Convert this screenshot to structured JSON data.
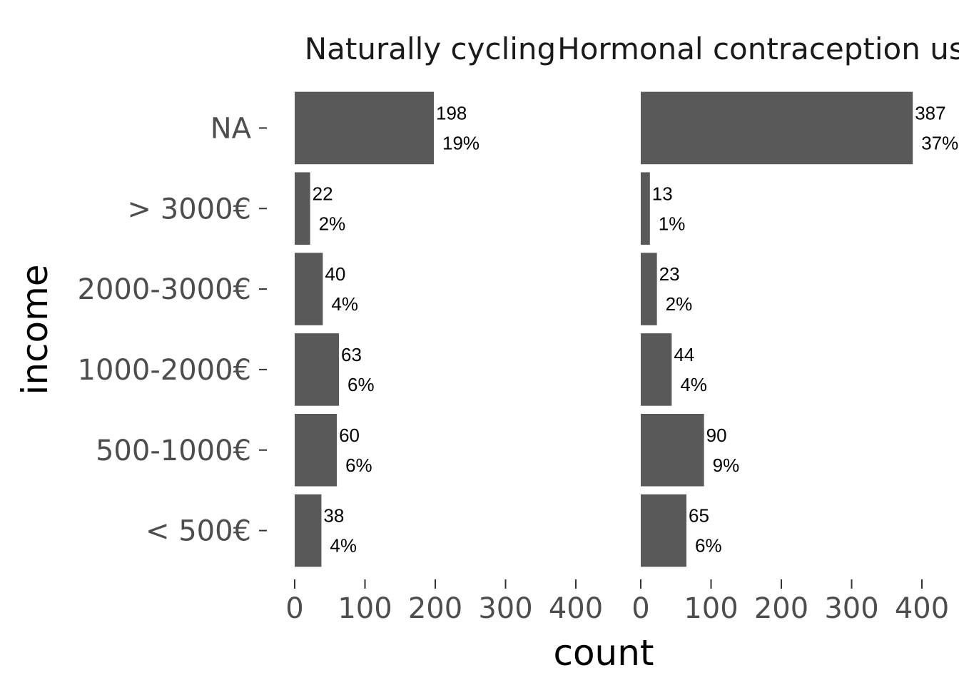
{
  "chart_data": {
    "type": "bar",
    "orientation": "horizontal",
    "xlabel": "count",
    "ylabel": "income",
    "xlim": [
      0,
      400
    ],
    "xticks": [
      "0",
      "100",
      "200",
      "300",
      "400"
    ],
    "categories": [
      "NA",
      "> 3000€",
      "2000-3000€",
      "1000-2000€",
      "500-1000€",
      "< 500€"
    ],
    "bar_color": "#595959",
    "grid": false,
    "panels": [
      {
        "title": "Naturally cycling",
        "values": [
          198,
          22,
          40,
          63,
          60,
          38
        ],
        "counts": [
          "198",
          "22",
          "40",
          "63",
          "60",
          "38"
        ],
        "percents": [
          "19%",
          "2%",
          "4%",
          "6%",
          "6%",
          "4%"
        ]
      },
      {
        "title": "Hormonal contraception user",
        "values": [
          387,
          13,
          23,
          44,
          90,
          65
        ],
        "counts": [
          "387",
          "13",
          "23",
          "44",
          "90",
          "65"
        ],
        "percents": [
          "37%",
          "1%",
          "2%",
          "4%",
          "9%",
          "6%"
        ]
      }
    ]
  }
}
